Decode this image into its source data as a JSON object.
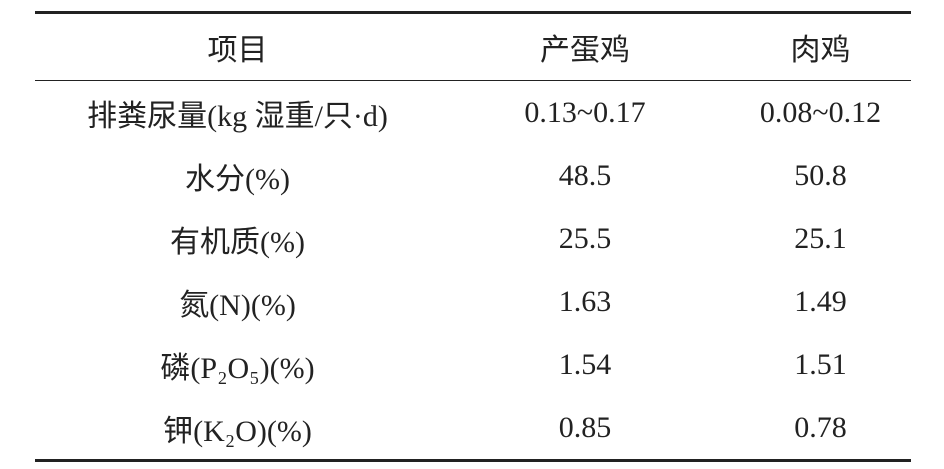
{
  "table": {
    "header": [
      "项目",
      "产蛋鸡",
      "肉鸡"
    ],
    "rows": [
      [
        "排粪尿量(kg 湿重/只·d)",
        "0.13~0.17",
        "0.08~0.12"
      ],
      [
        "水分(%)",
        "48.5",
        "50.8"
      ],
      [
        "有机质(%)",
        "25.5",
        "25.1"
      ],
      [
        "氮(N)(%)",
        "1.63",
        "1.49"
      ],
      [
        "磷(P₂O₅)(%)",
        "1.54",
        "1.51"
      ],
      [
        "钾(K₂O)(%)",
        "0.85",
        "0.78"
      ]
    ]
  }
}
